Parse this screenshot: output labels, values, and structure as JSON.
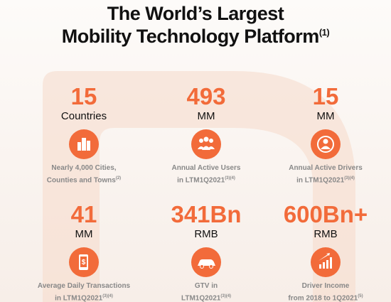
{
  "header": {
    "title": [
      "The World’s Largest",
      "Mobility Technology Platform"
    ],
    "title_note": "(1)"
  },
  "stats": [
    {
      "value": "15",
      "unit": "Countries",
      "description": [
        "Nearly 4,000 Cities,",
        "Counties and Towns"
      ],
      "note": "(2)"
    },
    {
      "value": "493",
      "unit": "MM",
      "description": [
        "Annual Active Users",
        "in LTM1Q2021"
      ],
      "note": "(3)(4)"
    },
    {
      "value": "15",
      "unit": "MM",
      "description": [
        "Annual Active Drivers",
        "in LTM1Q2021"
      ],
      "note": "(3)(4)"
    },
    {
      "value": "41",
      "unit": "MM",
      "description": [
        "Average Daily Transactions",
        "in  LTM1Q2021"
      ],
      "note": "(3)(4)"
    },
    {
      "value": "341Bn",
      "unit": "RMB",
      "description": [
        "GTV in",
        "LTM1Q2021"
      ],
      "note": "(3)(4)"
    },
    {
      "value": "600Bn+",
      "unit": "RMB",
      "description": [
        "Driver Income",
        "from 2018 to 1Q2021"
      ],
      "note": "(5)"
    }
  ]
}
